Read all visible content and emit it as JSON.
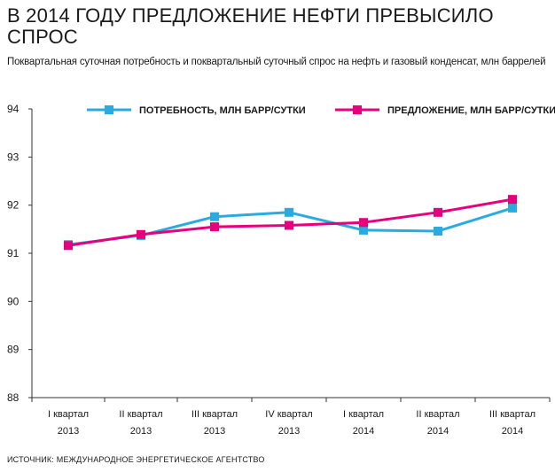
{
  "title": "В 2014 ГОДУ ПРЕДЛОЖЕНИЕ НЕФТИ ПРЕВЫСИЛО СПРОС",
  "subtitle": "Поквартальная суточная потребность и поквартальный суточный спрос на нефть и газовый конденсат, млн баррелей",
  "source": "ИСТОЧНИК: МЕЖДУНАРОДНОЕ ЭНЕРГЕТИЧЕСКОЕ АГЕНТСТВО",
  "chart_data": {
    "type": "line",
    "categories": [
      [
        "I квартал",
        "2013"
      ],
      [
        "II квартал",
        "2013"
      ],
      [
        "III квартал",
        "2013"
      ],
      [
        "IV квартал",
        "2013"
      ],
      [
        "I квартал",
        "2014"
      ],
      [
        "II квартал",
        "2014"
      ],
      [
        "III квартал",
        "2014"
      ]
    ],
    "ylim": [
      88,
      94
    ],
    "yticks": [
      88,
      89,
      90,
      91,
      92,
      93,
      94
    ],
    "grid": false,
    "legend_position": "top",
    "series": [
      {
        "name": "ПОТРЕБНОСТЬ, МЛН БАРР/СУТКИ",
        "color": "#29abe2",
        "values": [
          91.18,
          91.37,
          91.76,
          91.85,
          91.48,
          91.46,
          91.94
        ]
      },
      {
        "name": "ПРЕДЛОЖЕНИЕ, МЛН БАРР/СУТКИ",
        "color": "#e6007e",
        "values": [
          91.16,
          91.39,
          91.55,
          91.58,
          91.64,
          91.85,
          92.12
        ]
      }
    ]
  }
}
